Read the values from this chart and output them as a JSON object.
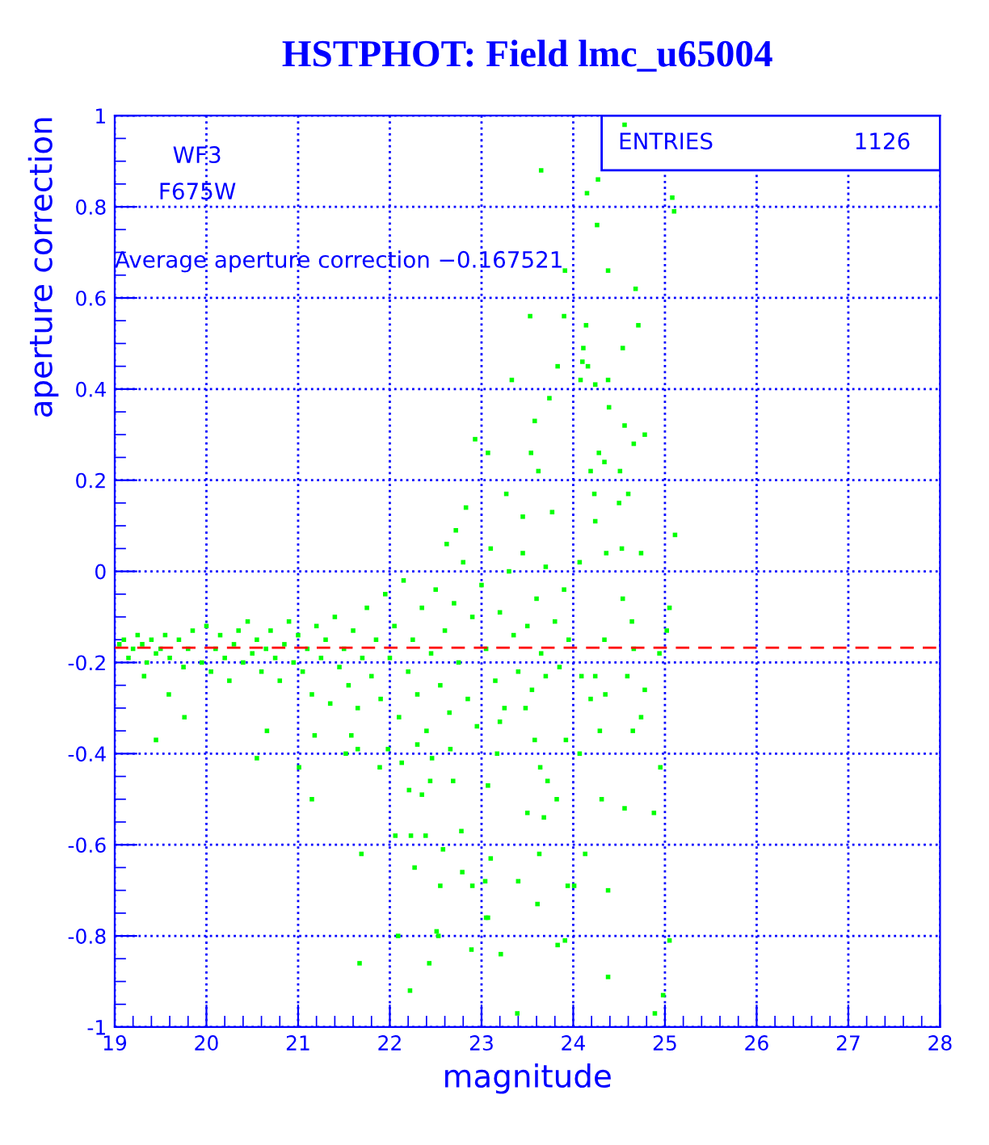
{
  "chart_data": {
    "type": "scatter",
    "title": "HSTPHOT: Field lmc_u65004",
    "xlabel": "magnitude",
    "ylabel": "aperture correction",
    "annotations": [
      "WF3",
      "F675W",
      "Average aperture correction −0.167521",
      "ENTRIES",
      "1126"
    ],
    "xlim": [
      19,
      28
    ],
    "ylim": [
      -1,
      1
    ],
    "xticks": [
      19,
      20,
      21,
      22,
      23,
      24,
      25,
      26,
      27,
      28
    ],
    "yticks": [
      -1,
      -0.8,
      -0.6,
      -0.4,
      -0.2,
      0,
      0.2,
      0.4,
      0.6,
      0.8,
      1
    ],
    "grid": true,
    "marker": "square",
    "legend": false,
    "ref_lines": [
      {
        "axis": "y",
        "value": -0.167521,
        "color": "#ff0000",
        "line_style": "dashed"
      }
    ],
    "series": [
      {
        "color": "#00ff00",
        "x": [
          19.05,
          19.1,
          19.15,
          19.2,
          19.25,
          19.3,
          19.35,
          19.4,
          19.45,
          19.5,
          19.55,
          19.6,
          19.7,
          19.75,
          19.8,
          19.85,
          19.95,
          20.0,
          20.05,
          20.1,
          20.15,
          20.2,
          20.25,
          20.3,
          20.35,
          20.4,
          20.45,
          20.5,
          20.55,
          20.6,
          20.65,
          20.7,
          20.75,
          20.8,
          20.85,
          20.9,
          20.95,
          21.0,
          21.05,
          21.1,
          21.15,
          21.2,
          21.25,
          21.3,
          21.35,
          21.4,
          21.45,
          21.5,
          21.55,
          21.6,
          21.65,
          21.7,
          21.75,
          21.8,
          21.85,
          21.9,
          21.95,
          22.0,
          22.05,
          22.1,
          22.15,
          22.2,
          22.25,
          22.3,
          22.35,
          22.4,
          22.45,
          22.5,
          22.55,
          22.6,
          22.65,
          22.7,
          22.75,
          22.8,
          22.85,
          22.9,
          22.95,
          23.0,
          23.05,
          23.1,
          23.15,
          23.2,
          23.25,
          23.3,
          23.35,
          23.4,
          23.45,
          23.5,
          23.55,
          23.6,
          23.65,
          23.7,
          23.8,
          23.85,
          23.9,
          23.95,
          19.32,
          19.59,
          19.76,
          19.45,
          20.55,
          20.66,
          21.15,
          21.69,
          21.67,
          22.22,
          22.51,
          22.89,
          23.21,
          23.39,
          23.83,
          23.65,
          23.91,
          23.53,
          23.9,
          23.83,
          23.33,
          23.74,
          23.58,
          22.93,
          23.54,
          23.07,
          23.62,
          22.83,
          22.72,
          22.62,
          23.27,
          23.77,
          23.45,
          24.56,
          24.27,
          24.15,
          25.08,
          25.1,
          24.26,
          24.38,
          24.68,
          24.14,
          24.71,
          24.11,
          24.54,
          24.1,
          24.16,
          24.38,
          24.08,
          24.24,
          24.39,
          24.56,
          24.78,
          24.66,
          24.28,
          24.34,
          24.51,
          24.19,
          24.6,
          24.23,
          24.5,
          24.24,
          25.11,
          24.53,
          24.74,
          24.07,
          24.36,
          24.54,
          25.05,
          24.64,
          25.02,
          24.34,
          24.66,
          24.94,
          24.09,
          24.24,
          24.59,
          24.78,
          24.19,
          24.35,
          24.74,
          24.29,
          24.65,
          24.07,
          24.95,
          24.31,
          24.56,
          24.88,
          24.13,
          24.38,
          24.01,
          25.05,
          24.38,
          24.98,
          24.89,
          23.91,
          23.63,
          23.4,
          23.61,
          23.94,
          23.07,
          23.1,
          23.72,
          23.5,
          23.68,
          23.64,
          23.82,
          23.58,
          23.92,
          23.17,
          23.2,
          23.48,
          23.7,
          22.06,
          22.23,
          22.39,
          22.58,
          22.78,
          22.27,
          22.55,
          22.9,
          22.79,
          23.04,
          23.05,
          22.09,
          22.53,
          22.43,
          22.21,
          22.35,
          22.44,
          22.69,
          23.07,
          22.13,
          22.46,
          22.66,
          22.3,
          21.98,
          21.89,
          21.65,
          21.52,
          21.01,
          21.58,
          21.18
        ],
        "values": [
          -0.16,
          -0.15,
          -0.19,
          -0.17,
          -0.14,
          -0.16,
          -0.2,
          -0.15,
          -0.18,
          -0.17,
          -0.14,
          -0.19,
          -0.15,
          -0.21,
          -0.17,
          -0.13,
          -0.2,
          -0.12,
          -0.22,
          -0.17,
          -0.14,
          -0.19,
          -0.24,
          -0.16,
          -0.13,
          -0.2,
          -0.11,
          -0.18,
          -0.15,
          -0.22,
          -0.17,
          -0.13,
          -0.19,
          -0.24,
          -0.16,
          -0.11,
          -0.2,
          -0.14,
          -0.22,
          -0.17,
          -0.27,
          -0.12,
          -0.19,
          -0.15,
          -0.29,
          -0.1,
          -0.21,
          -0.17,
          -0.25,
          -0.13,
          -0.3,
          -0.19,
          -0.08,
          -0.23,
          -0.15,
          -0.28,
          -0.05,
          -0.19,
          -0.12,
          -0.32,
          -0.02,
          -0.22,
          -0.15,
          -0.27,
          -0.08,
          -0.35,
          -0.18,
          -0.04,
          -0.25,
          -0.13,
          -0.31,
          -0.07,
          -0.2,
          0.02,
          -0.28,
          -0.1,
          -0.34,
          -0.03,
          -0.17,
          0.05,
          -0.24,
          -0.09,
          -0.3,
          0.0,
          -0.14,
          -0.22,
          0.04,
          -0.12,
          -0.26,
          -0.06,
          -0.18,
          0.01,
          -0.11,
          -0.21,
          -0.04,
          -0.15,
          -0.23,
          -0.27,
          -0.32,
          -0.37,
          -0.41,
          -0.35,
          -0.5,
          -0.62,
          -0.86,
          -0.92,
          -0.79,
          -0.83,
          -0.84,
          -0.97,
          -0.82,
          0.88,
          0.66,
          0.56,
          0.56,
          0.45,
          0.42,
          0.38,
          0.33,
          0.29,
          0.26,
          0.26,
          0.22,
          0.14,
          0.09,
          0.06,
          0.17,
          0.13,
          0.12,
          0.98,
          0.86,
          0.83,
          0.82,
          0.79,
          0.76,
          0.66,
          0.62,
          0.54,
          0.54,
          0.49,
          0.49,
          0.46,
          0.45,
          0.42,
          0.42,
          0.41,
          0.36,
          0.32,
          0.3,
          0.28,
          0.26,
          0.24,
          0.22,
          0.22,
          0.17,
          0.17,
          0.15,
          0.11,
          0.08,
          0.05,
          0.04,
          0.02,
          0.04,
          -0.06,
          -0.08,
          -0.11,
          -0.13,
          -0.15,
          -0.17,
          -0.18,
          -0.23,
          -0.23,
          -0.23,
          -0.26,
          -0.28,
          -0.27,
          -0.32,
          -0.35,
          -0.35,
          -0.4,
          -0.43,
          -0.5,
          -0.52,
          -0.53,
          -0.62,
          -0.7,
          -0.69,
          -0.81,
          -0.89,
          -0.93,
          -0.97,
          -0.81,
          -0.62,
          -0.68,
          -0.73,
          -0.69,
          -0.76,
          -0.63,
          -0.46,
          -0.53,
          -0.54,
          -0.43,
          -0.5,
          -0.37,
          -0.37,
          -0.4,
          -0.33,
          -0.3,
          -0.23,
          -0.58,
          -0.58,
          -0.58,
          -0.61,
          -0.57,
          -0.65,
          -0.69,
          -0.69,
          -0.66,
          -0.68,
          -0.76,
          -0.8,
          -0.8,
          -0.86,
          -0.48,
          -0.49,
          -0.46,
          -0.46,
          -0.47,
          -0.42,
          -0.41,
          -0.39,
          -0.38,
          -0.39,
          -0.43,
          -0.39,
          -0.4,
          -0.43,
          -0.36,
          -0.36
        ]
      }
    ]
  }
}
